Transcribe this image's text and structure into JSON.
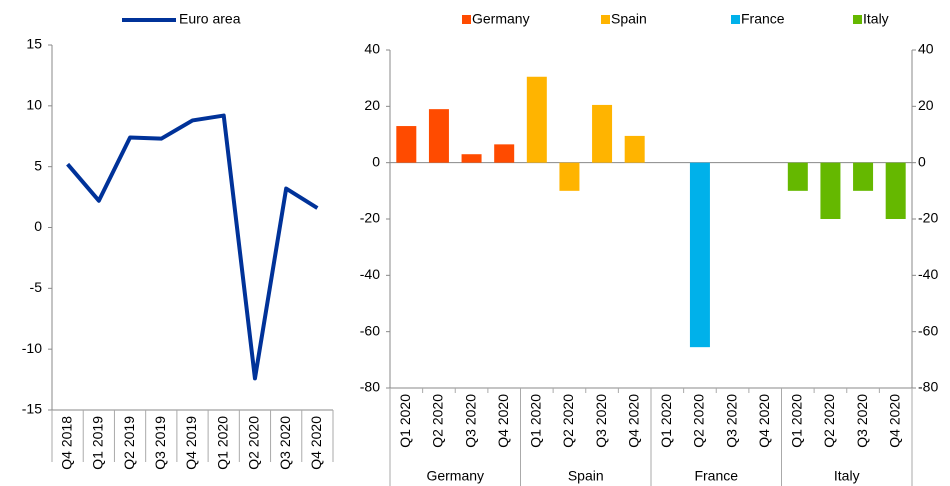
{
  "chart_data": [
    {
      "type": "line",
      "categories": [
        "Q4 2018",
        "Q1 2019",
        "Q2 2019",
        "Q3 2019",
        "Q4 2019",
        "Q1 2020",
        "Q2 2020",
        "Q3 2020",
        "Q4 2020"
      ],
      "series": [
        {
          "name": "Euro area",
          "color": "#003299",
          "values": [
            5.2,
            2.2,
            7.4,
            7.3,
            8.8,
            9.2,
            -12.4,
            3.2,
            1.6
          ]
        }
      ],
      "ylim": [
        -15,
        15
      ],
      "yticks": [
        -15,
        -10,
        -5,
        0,
        5,
        10,
        15
      ],
      "grid": false
    },
    {
      "type": "bar",
      "categories": [
        "Q1 2020",
        "Q2 2020",
        "Q3 2020",
        "Q4 2020",
        "Q1 2020",
        "Q2 2020",
        "Q3 2020",
        "Q4 2020",
        "Q1 2020",
        "Q2 2020",
        "Q3 2020",
        "Q4 2020",
        "Q1 2020",
        "Q2 2020",
        "Q3 2020",
        "Q4 2020"
      ],
      "groups": [
        "Germany",
        "Spain",
        "France",
        "Italy"
      ],
      "series": [
        {
          "name": "Germany",
          "color": "#ff4b00",
          "values": [
            13,
            19,
            3,
            6.5,
            null,
            null,
            null,
            null,
            null,
            null,
            null,
            null,
            null,
            null,
            null,
            null
          ]
        },
        {
          "name": "Spain",
          "color": "#ffb400",
          "values": [
            null,
            null,
            null,
            null,
            30.5,
            -10,
            20.5,
            9.5,
            null,
            null,
            null,
            null,
            null,
            null,
            null,
            null
          ]
        },
        {
          "name": "France",
          "color": "#00b1ea",
          "values": [
            null,
            null,
            null,
            null,
            null,
            null,
            null,
            null,
            null,
            -65.5,
            null,
            null,
            null,
            null,
            null,
            null
          ]
        },
        {
          "name": "Italy",
          "color": "#65b800",
          "values": [
            null,
            null,
            null,
            null,
            null,
            null,
            null,
            null,
            null,
            null,
            null,
            null,
            -10,
            -20,
            -10,
            -20
          ]
        }
      ],
      "ylim": [
        -80,
        40
      ],
      "yticks": [
        -80,
        -60,
        -40,
        -20,
        0,
        20,
        40
      ],
      "y2lim": [
        -80,
        40
      ],
      "y2ticks": [
        -80,
        -60,
        -40,
        -20,
        0,
        20,
        40
      ],
      "grid": false
    }
  ]
}
